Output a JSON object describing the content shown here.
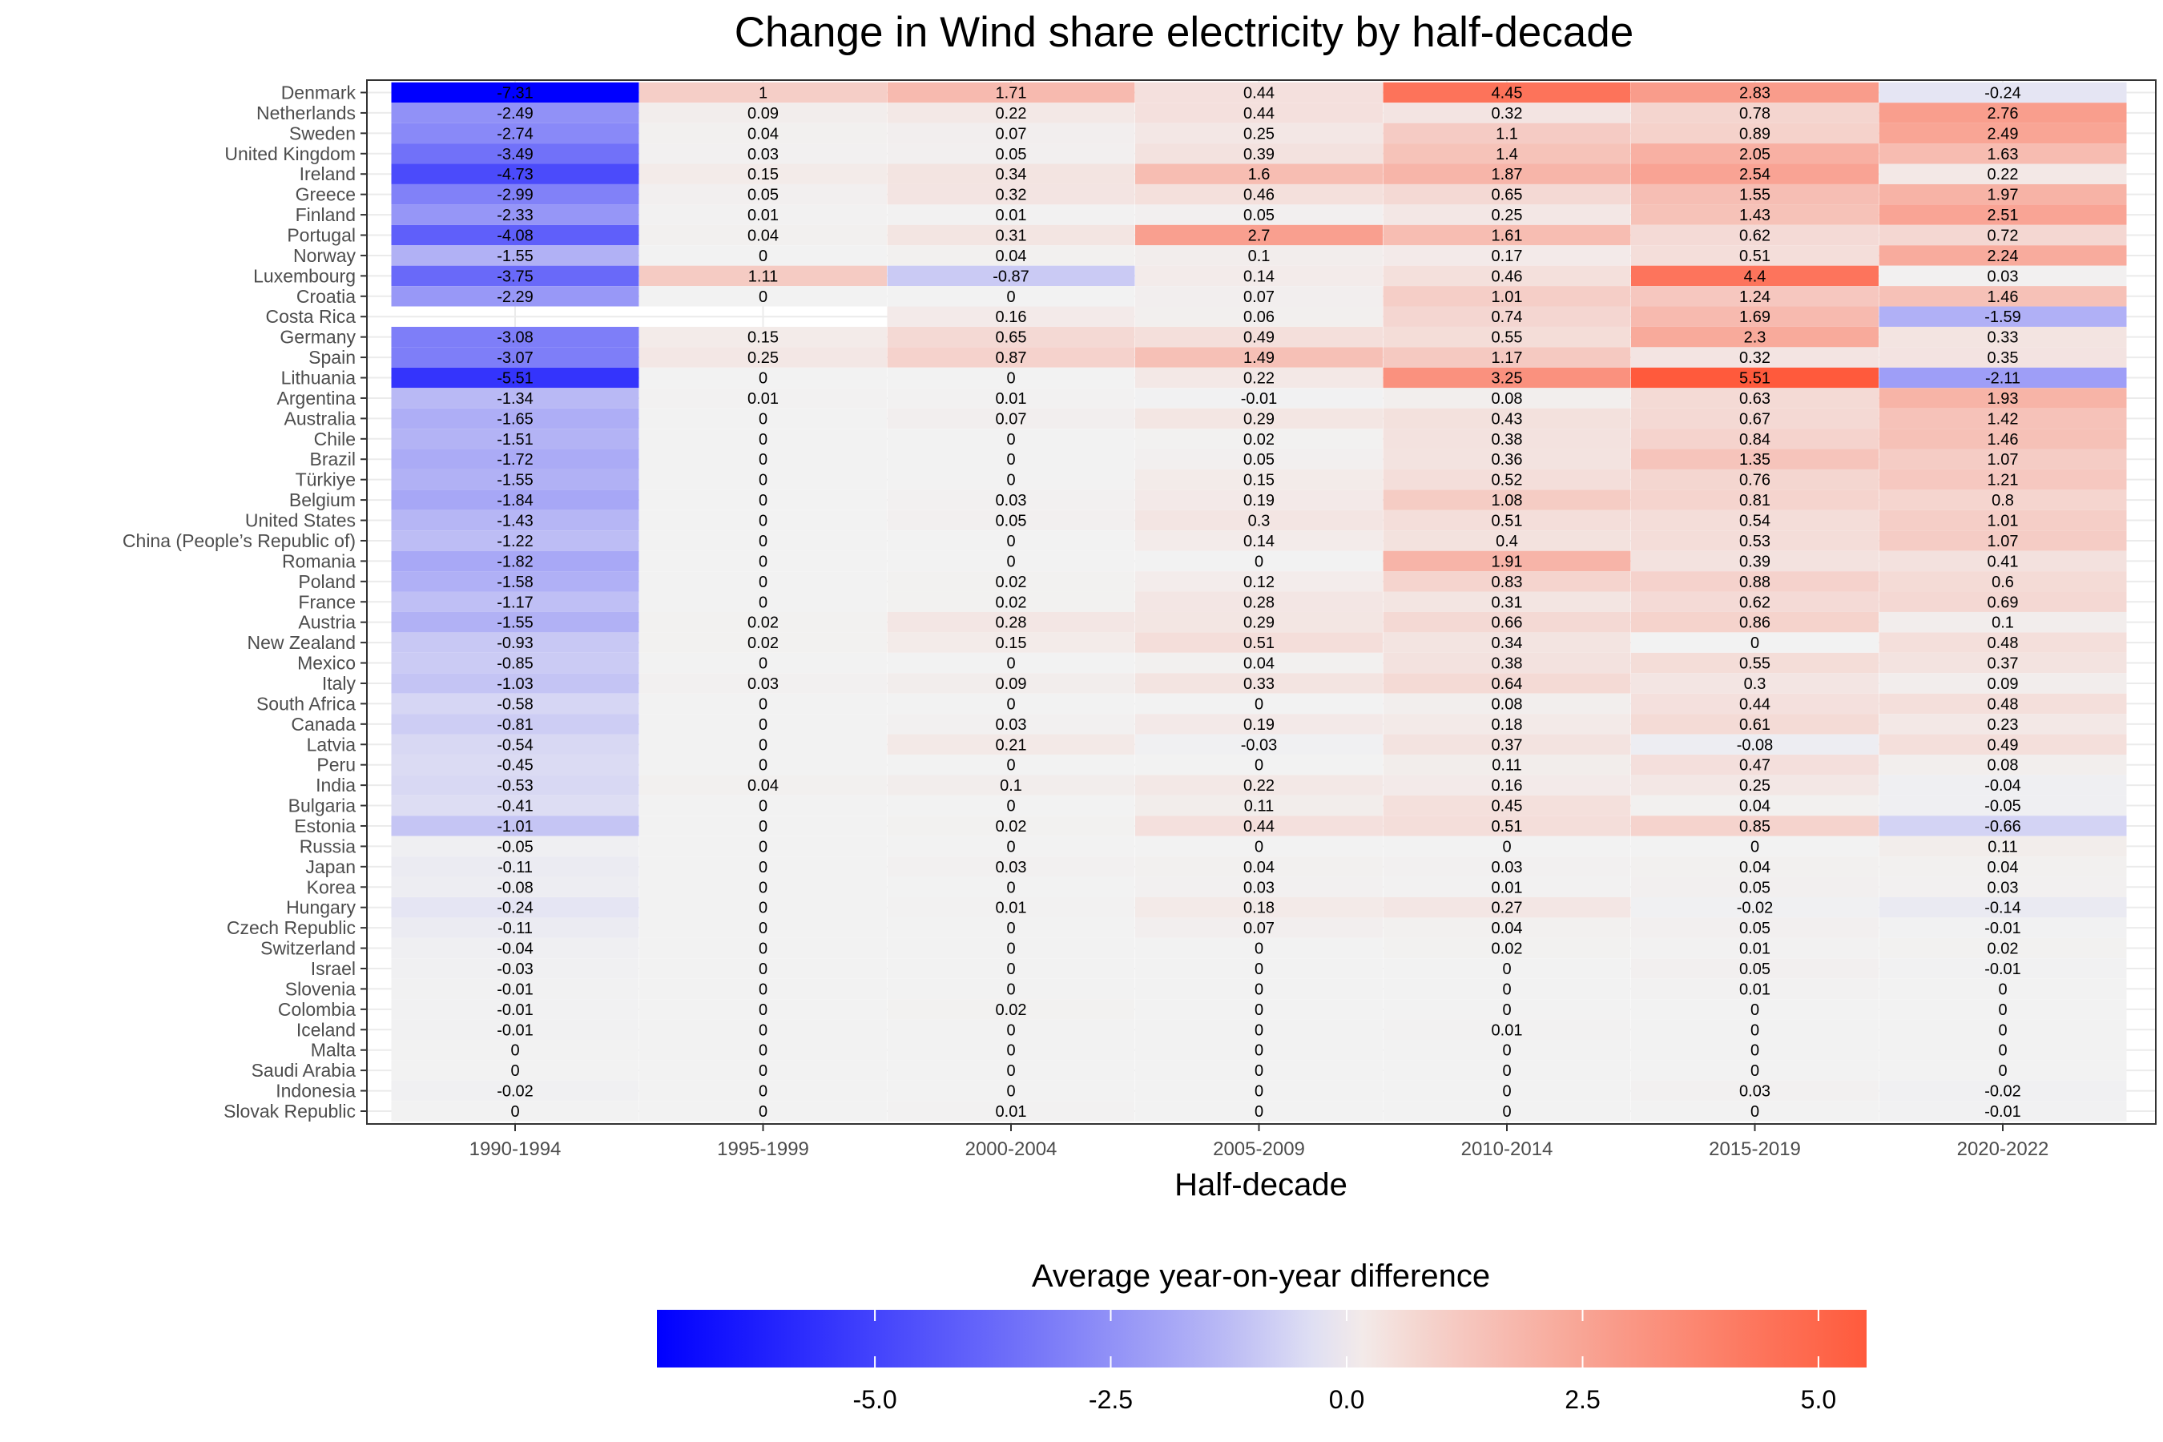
{
  "chart_data": {
    "type": "heatmap",
    "title": "Change in Wind share electricity by half-decade",
    "xlabel": "Half-decade",
    "ylabel": "",
    "legend_title": "Average year-on-year difference",
    "legend_placement": "bottom",
    "legend_ticks": [
      "-5.0",
      "-2.5",
      "0.0",
      "2.5",
      "5.0"
    ],
    "legend_tick_values": [
      -5,
      -2.5,
      0,
      2.5,
      5
    ],
    "color_scale": {
      "low": "#0000ff",
      "mid": "#f2f2f2",
      "high": "#ff5a3c",
      "min": -7.31,
      "mid_value": 0,
      "max": 5.51
    },
    "grid": true,
    "x": [
      "1990-1994",
      "1995-1999",
      "2000-2004",
      "2005-2009",
      "2010-2014",
      "2015-2019",
      "2020-2022"
    ],
    "y": [
      "Denmark",
      "Netherlands",
      "Sweden",
      "United Kingdom",
      "Ireland",
      "Greece",
      "Finland",
      "Portugal",
      "Norway",
      "Luxembourg",
      "Croatia",
      "Costa Rica",
      "Germany",
      "Spain",
      "Lithuania",
      "Argentina",
      "Australia",
      "Chile",
      "Brazil",
      "Türkiye",
      "Belgium",
      "United States",
      "China (People’s Republic of)",
      "Romania",
      "Poland",
      "France",
      "Austria",
      "New Zealand",
      "Mexico",
      "Italy",
      "South Africa",
      "Canada",
      "Latvia",
      "Peru",
      "India",
      "Bulgaria",
      "Estonia",
      "Russia",
      "Japan",
      "Korea",
      "Hungary",
      "Czech Republic",
      "Switzerland",
      "Israel",
      "Slovenia",
      "Colombia",
      "Iceland",
      "Malta",
      "Saudi Arabia",
      "Indonesia",
      "Slovak Republic"
    ],
    "values": [
      [
        -7.31,
        1,
        1.71,
        0.44,
        4.45,
        2.83,
        -0.24
      ],
      [
        -2.49,
        0.09,
        0.22,
        0.44,
        0.32,
        0.78,
        2.76
      ],
      [
        -2.74,
        0.04,
        0.07,
        0.25,
        1.1,
        0.89,
        2.49
      ],
      [
        -3.49,
        0.03,
        0.05,
        0.39,
        1.4,
        2.05,
        1.63
      ],
      [
        -4.73,
        0.15,
        0.34,
        1.6,
        1.87,
        2.54,
        0.22
      ],
      [
        -2.99,
        0.05,
        0.32,
        0.46,
        0.65,
        1.55,
        1.97
      ],
      [
        -2.33,
        0.01,
        0.01,
        0.05,
        0.25,
        1.43,
        2.51
      ],
      [
        -4.08,
        0.04,
        0.31,
        2.7,
        1.61,
        0.62,
        0.72
      ],
      [
        -1.55,
        0,
        0.04,
        0.1,
        0.17,
        0.51,
        2.24
      ],
      [
        -3.75,
        1.11,
        -0.87,
        0.14,
        0.46,
        4.4,
        0.03
      ],
      [
        -2.29,
        0,
        0,
        0.07,
        1.01,
        1.24,
        1.46
      ],
      [
        null,
        null,
        0.16,
        0.06,
        0.74,
        1.69,
        -1.59
      ],
      [
        -3.08,
        0.15,
        0.65,
        0.49,
        0.55,
        2.3,
        0.33
      ],
      [
        -3.07,
        0.25,
        0.87,
        1.49,
        1.17,
        0.32,
        0.35
      ],
      [
        -5.51,
        0,
        0,
        0.22,
        3.25,
        5.51,
        -2.11
      ],
      [
        -1.34,
        0.01,
        0.01,
        -0.01,
        0.08,
        0.63,
        1.93
      ],
      [
        -1.65,
        0,
        0.07,
        0.29,
        0.43,
        0.67,
        1.42
      ],
      [
        -1.51,
        0,
        0,
        0.02,
        0.38,
        0.84,
        1.46
      ],
      [
        -1.72,
        0,
        0,
        0.05,
        0.36,
        1.35,
        1.07
      ],
      [
        -1.55,
        0,
        0,
        0.15,
        0.52,
        0.76,
        1.21
      ],
      [
        -1.84,
        0,
        0.03,
        0.19,
        1.08,
        0.81,
        0.8
      ],
      [
        -1.43,
        0,
        0.05,
        0.3,
        0.51,
        0.54,
        1.01
      ],
      [
        -1.22,
        0,
        0,
        0.14,
        0.4,
        0.53,
        1.07
      ],
      [
        -1.82,
        0,
        0,
        0,
        1.91,
        0.39,
        0.41
      ],
      [
        -1.58,
        0,
        0.02,
        0.12,
        0.83,
        0.88,
        0.6
      ],
      [
        -1.17,
        0,
        0.02,
        0.28,
        0.31,
        0.62,
        0.69
      ],
      [
        -1.55,
        0.02,
        0.28,
        0.29,
        0.66,
        0.86,
        0.1
      ],
      [
        -0.93,
        0.02,
        0.15,
        0.51,
        0.34,
        0,
        0.48
      ],
      [
        -0.85,
        0,
        0,
        0.04,
        0.38,
        0.55,
        0.37
      ],
      [
        -1.03,
        0.03,
        0.09,
        0.33,
        0.64,
        0.3,
        0.09
      ],
      [
        -0.58,
        0,
        0,
        0,
        0.08,
        0.44,
        0.48
      ],
      [
        -0.81,
        0,
        0.03,
        0.19,
        0.18,
        0.61,
        0.23
      ],
      [
        -0.54,
        0,
        0.21,
        -0.03,
        0.37,
        -0.08,
        0.49
      ],
      [
        -0.45,
        0,
        0,
        0,
        0.11,
        0.47,
        0.08
      ],
      [
        -0.53,
        0.04,
        0.1,
        0.22,
        0.16,
        0.25,
        -0.04
      ],
      [
        -0.41,
        0,
        0,
        0.11,
        0.45,
        0.04,
        -0.05
      ],
      [
        -1.01,
        0,
        0.02,
        0.44,
        0.51,
        0.85,
        -0.66
      ],
      [
        -0.05,
        0,
        0,
        0,
        0,
        0,
        0.11
      ],
      [
        -0.11,
        0,
        0.03,
        0.04,
        0.03,
        0.04,
        0.04
      ],
      [
        -0.08,
        0,
        0,
        0.03,
        0.01,
        0.05,
        0.03
      ],
      [
        -0.24,
        0,
        0.01,
        0.18,
        0.27,
        -0.02,
        -0.14
      ],
      [
        -0.11,
        0,
        0,
        0.07,
        0.04,
        0.05,
        -0.01
      ],
      [
        -0.04,
        0,
        0,
        0,
        0.02,
        0.01,
        0.02
      ],
      [
        -0.03,
        0,
        0,
        0,
        0,
        0.05,
        -0.01
      ],
      [
        -0.01,
        0,
        0,
        0,
        0,
        0.01,
        0
      ],
      [
        -0.01,
        0,
        0.02,
        0,
        0,
        0,
        0
      ],
      [
        -0.01,
        0,
        0,
        0,
        0.01,
        0,
        0
      ],
      [
        0,
        0,
        0,
        0,
        0,
        0,
        0
      ],
      [
        0,
        0,
        0,
        0,
        0,
        0,
        0
      ],
      [
        -0.02,
        0,
        0,
        0,
        0,
        0.03,
        -0.02
      ],
      [
        0,
        0,
        0.01,
        0,
        0,
        0,
        -0.01
      ]
    ]
  }
}
